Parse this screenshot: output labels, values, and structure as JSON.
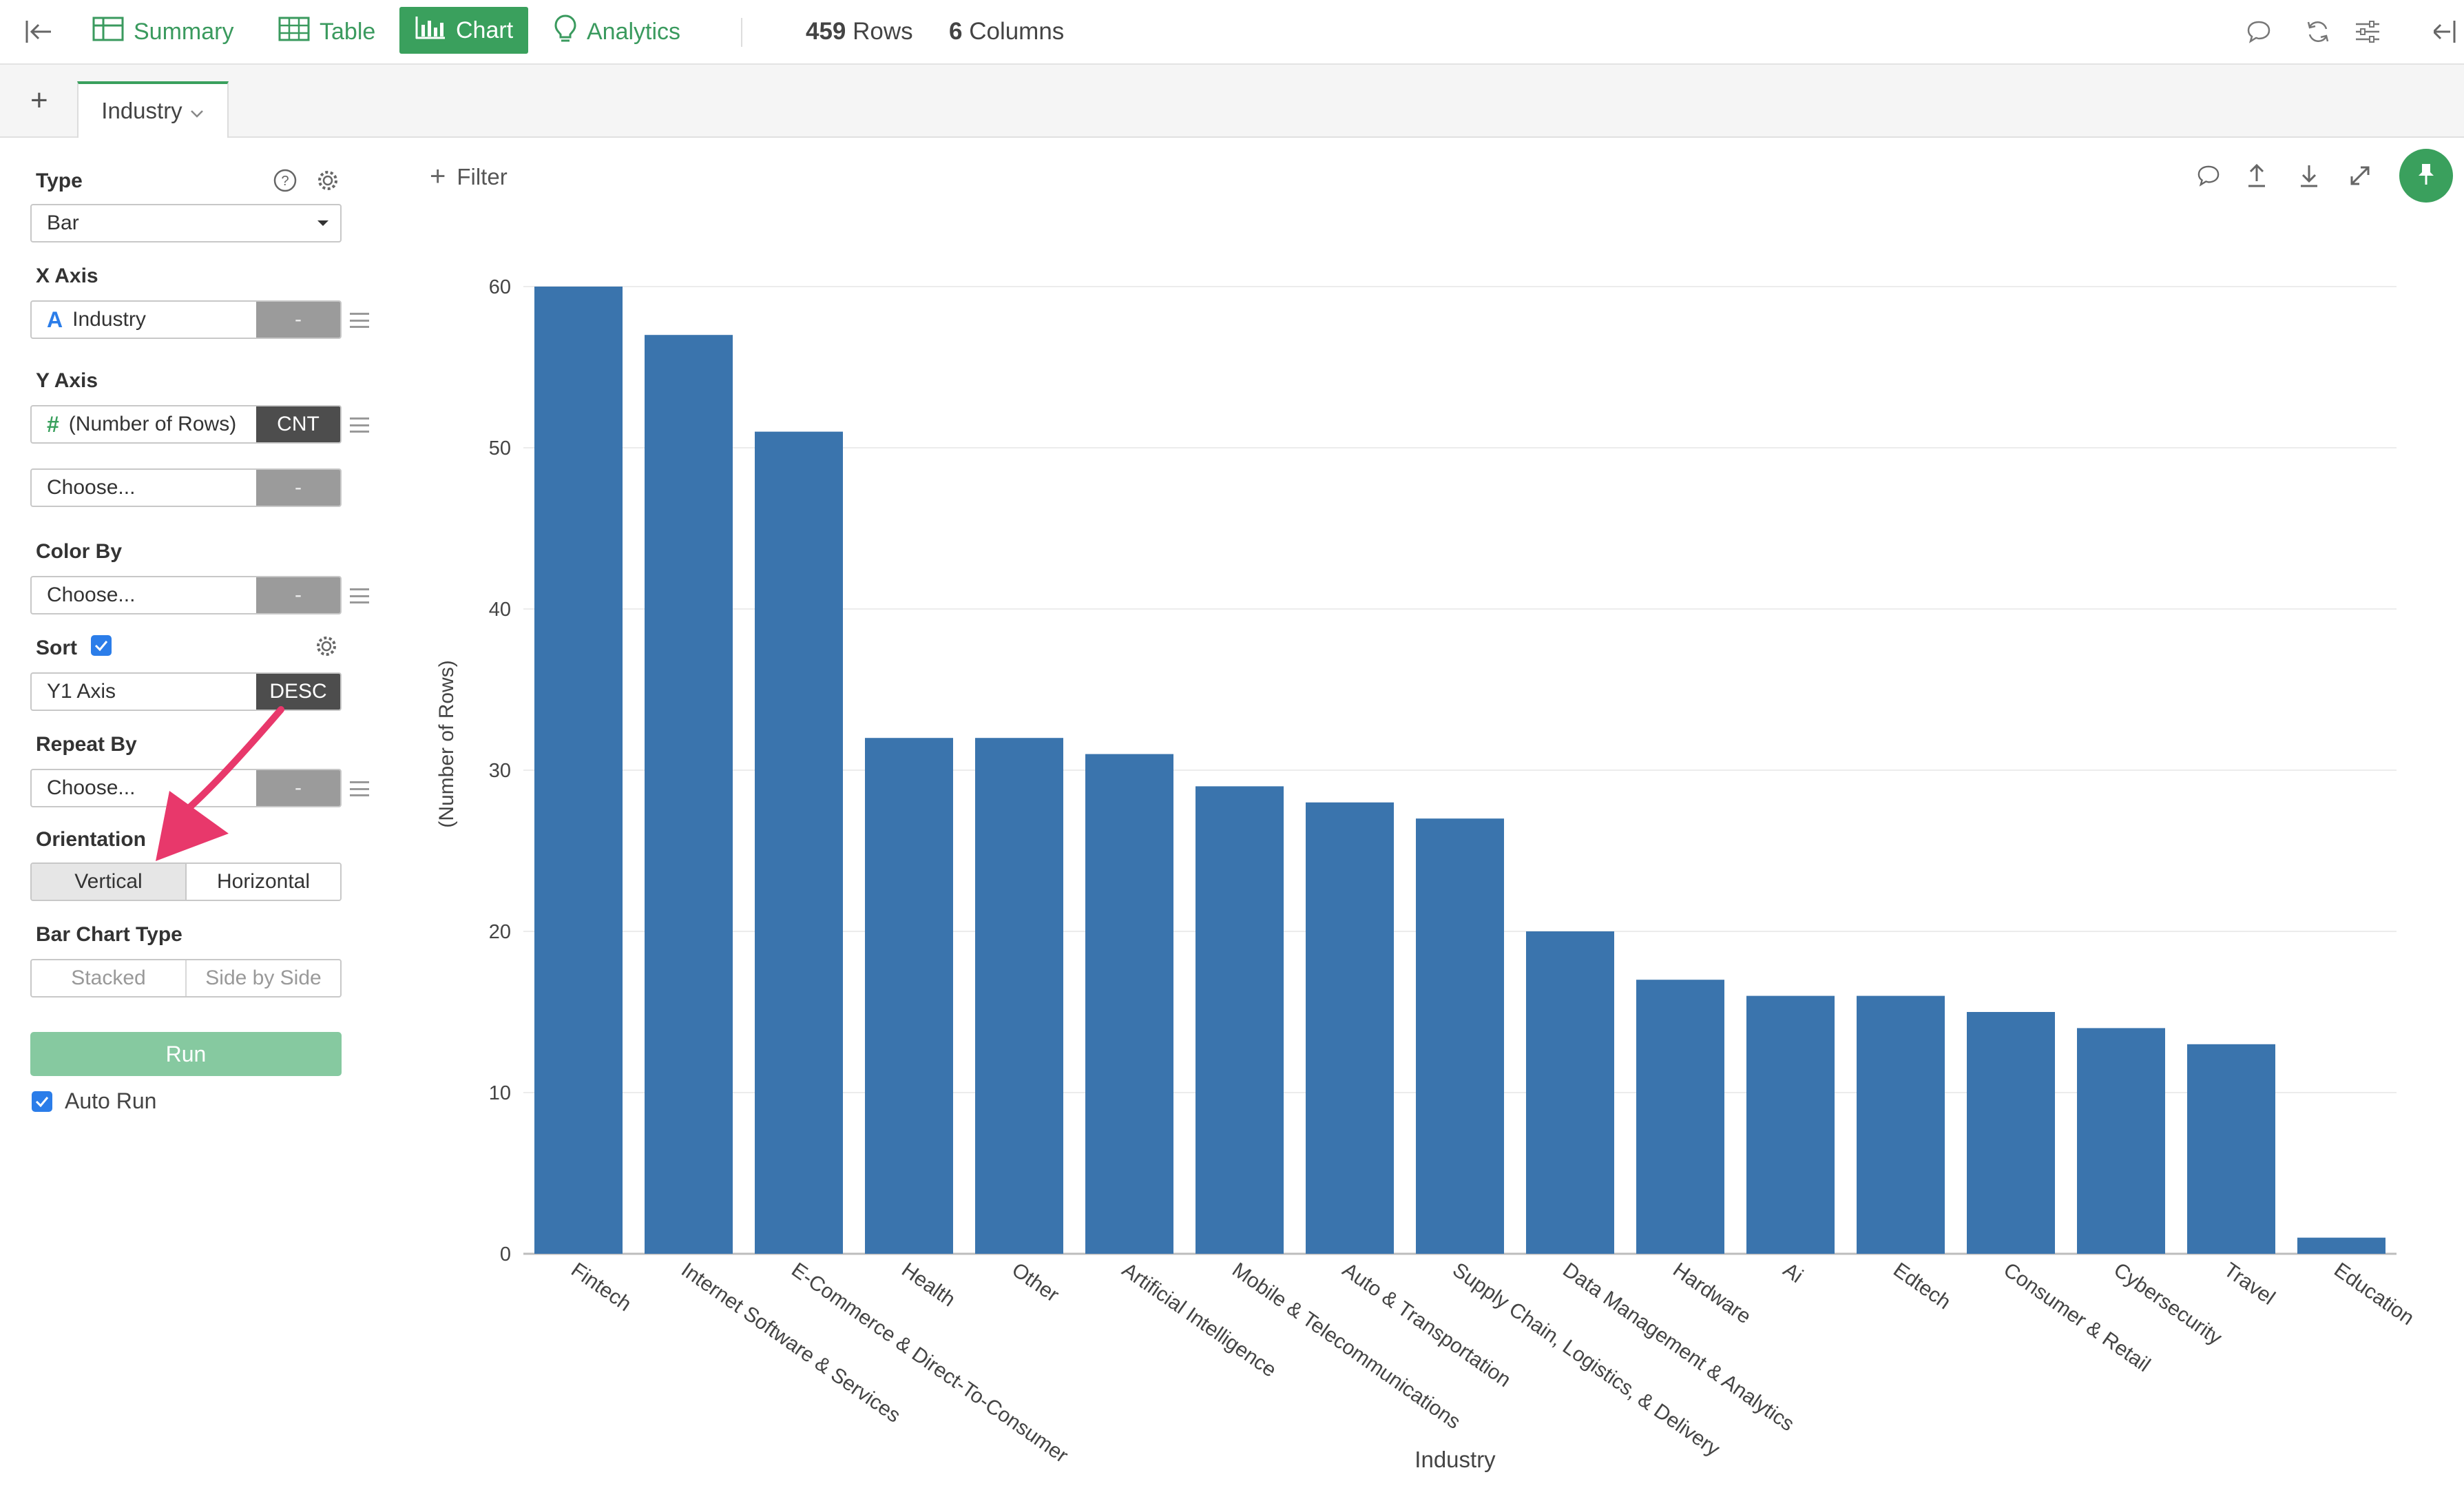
{
  "toolbar": {
    "tabs": [
      {
        "label": "Summary",
        "icon": "summary-grid-icon"
      },
      {
        "label": "Table",
        "icon": "table-grid-icon"
      },
      {
        "label": "Chart",
        "icon": "bar-chart-icon",
        "active": true
      },
      {
        "label": "Analytics",
        "icon": "lightbulb-icon"
      }
    ],
    "rows_count": "459",
    "rows_label": "Rows",
    "cols_count": "6",
    "cols_label": "Columns",
    "accent": "#3aa05d"
  },
  "tabbar": {
    "tab_label": "Industry"
  },
  "panel": {
    "type_label": "Type",
    "type_value": "Bar",
    "xaxis_label": "X Axis",
    "xaxis_field": "Industry",
    "xaxis_agg": "-",
    "yaxis_label": "Y Axis",
    "yaxis_field": "(Number of Rows)",
    "yaxis_agg": "CNT",
    "yaxis2_placeholder": "Choose...",
    "yaxis2_agg": "-",
    "colorby_label": "Color By",
    "colorby_placeholder": "Choose...",
    "colorby_agg": "-",
    "sort_label": "Sort",
    "sort_field": "Y1 Axis",
    "sort_order": "DESC",
    "repeatby_label": "Repeat By",
    "repeatby_placeholder": "Choose...",
    "repeatby_agg": "-",
    "orientation_label": "Orientation",
    "orientation_vertical": "Vertical",
    "orientation_horizontal": "Horizontal",
    "barchart_type_label": "Bar Chart Type",
    "barchart_stacked": "Stacked",
    "barchart_side": "Side by Side",
    "run_label": "Run",
    "autorun_label": "Auto Run"
  },
  "chart_toolbar": {
    "filter_label": "Filter"
  },
  "chart_data": {
    "type": "bar",
    "categories": [
      "Fintech",
      "Internet Software & Services",
      "E-Commerce & Direct-To-Consumer",
      "Health",
      "Other",
      "Artificial Intelligence",
      "Mobile & Telecommunications",
      "Auto & Transportation",
      "Supply Chain, Logistics, & Delivery",
      "Data Management & Analytics",
      "Hardware",
      "Ai",
      "Edtech",
      "Consumer & Retail",
      "Cybersecurity",
      "Travel",
      "Education"
    ],
    "values": [
      60,
      57,
      51,
      32,
      32,
      31,
      29,
      28,
      27,
      20,
      17,
      16,
      16,
      15,
      14,
      13,
      1
    ],
    "xlabel": "Industry",
    "ylabel": "(Number of Rows)",
    "ylim": [
      0,
      60
    ],
    "yticks": [
      0,
      10,
      20,
      30,
      40,
      50,
      60
    ],
    "grid": true,
    "bar_color": "#3a74ad",
    "sort": "descending"
  }
}
